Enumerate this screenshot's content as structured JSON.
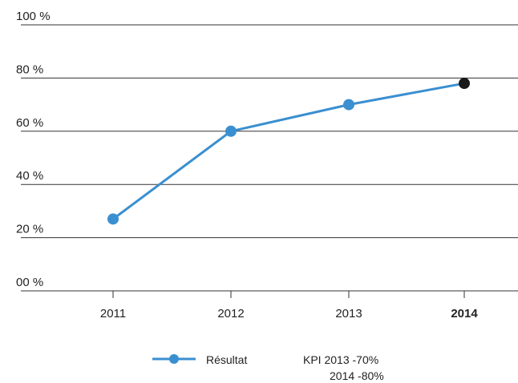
{
  "chart_data": {
    "type": "line",
    "title": "",
    "xlabel": "",
    "ylabel": "",
    "categories": [
      "2011",
      "2012",
      "2013",
      "2014"
    ],
    "highlight_category": "2014",
    "series": [
      {
        "name": "Résultat",
        "color": "#3a8fd0",
        "values": [
          27,
          60,
          70,
          78
        ],
        "point_colors": [
          "#3a8fd0",
          "#3a8fd0",
          "#3a8fd0",
          "#1a1a1a"
        ]
      }
    ],
    "yticks": [
      "00 %",
      "20 %",
      "40 %",
      "60 %",
      "80 %",
      "100 %"
    ],
    "ylim": [
      0,
      100
    ],
    "grid": "horizontal",
    "legend": {
      "placement": "bottom",
      "kpi_line1": "KPI 2013 -70%",
      "kpi_line2": "2014 -80%"
    }
  }
}
